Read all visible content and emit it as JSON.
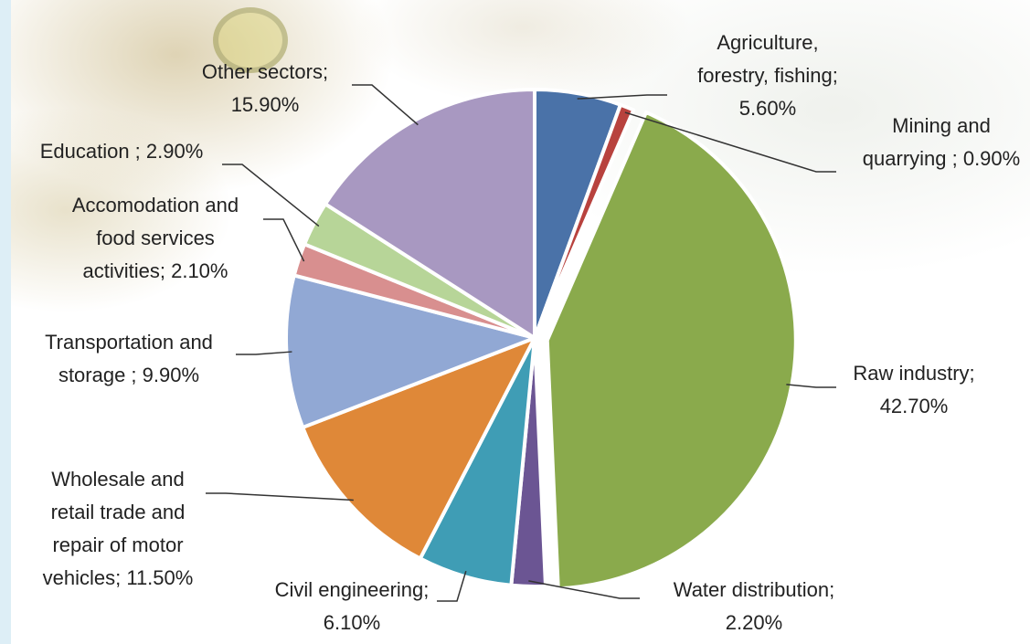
{
  "chart_data": {
    "type": "pie",
    "title": "",
    "slices": [
      {
        "label": "Agriculture,\nforestry, fishing;\n5.60%",
        "value": 5.6,
        "color": "#4a72a8"
      },
      {
        "label": "Mining and\nquarrying ; 0.90%",
        "value": 0.9,
        "color": "#b8423e"
      },
      {
        "label": "Raw industry;\n42.70%",
        "value": 42.7,
        "color": "#8aaa4c"
      },
      {
        "label": "Water distribution;\n2.20%",
        "value": 2.2,
        "color": "#6b5593"
      },
      {
        "label": "Civil engineering;\n6.10%",
        "value": 6.1,
        "color": "#3f9db5"
      },
      {
        "label": "Wholesale and\nretail trade and\nrepair of motor\nvehicles; 11.50%",
        "value": 11.5,
        "color": "#df8838"
      },
      {
        "label": "Transportation and\nstorage ; 9.90%",
        "value": 9.9,
        "color": "#91a8d4"
      },
      {
        "label": "Accomodation and\nfood services\nactivities; 2.10%",
        "value": 2.1,
        "color": "#d88f8f"
      },
      {
        "label": "Education ; 2.90%",
        "value": 2.9,
        "color": "#b7d598"
      },
      {
        "label": "Other sectors;\n15.90%",
        "value": 15.9,
        "color": "#a898c1"
      }
    ]
  }
}
